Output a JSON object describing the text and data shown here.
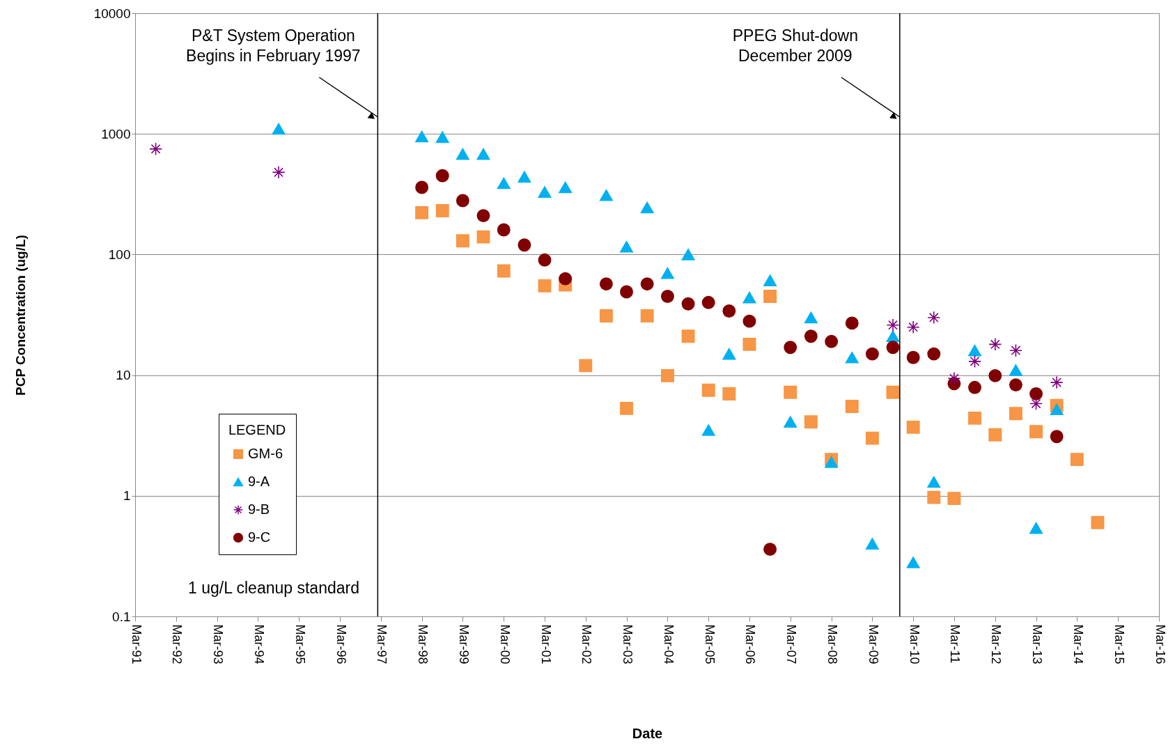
{
  "chart_data": {
    "type": "scatter",
    "xlabel": "Date",
    "ylabel": "PCP Concentration (ug/L)",
    "legend_title": "LEGEND",
    "log": "y",
    "grid": "y",
    "legend": "bottom left",
    "xlim": [
      "1991-03",
      "2016-03"
    ],
    "xticks": [
      {
        "value": "1991-03",
        "label": "Mar-91"
      },
      {
        "value": "1992-03",
        "label": "Mar-92"
      },
      {
        "value": "1993-03",
        "label": "Mar-93"
      },
      {
        "value": "1994-03",
        "label": "Mar-94"
      },
      {
        "value": "1995-03",
        "label": "Mar-95"
      },
      {
        "value": "1996-03",
        "label": "Mar-96"
      },
      {
        "value": "1997-03",
        "label": "Mar-97"
      },
      {
        "value": "1998-03",
        "label": "Mar-98"
      },
      {
        "value": "1999-03",
        "label": "Mar-99"
      },
      {
        "value": "2000-03",
        "label": "Mar-00"
      },
      {
        "value": "2001-03",
        "label": "Mar-01"
      },
      {
        "value": "2002-03",
        "label": "Mar-02"
      },
      {
        "value": "2003-03",
        "label": "Mar-03"
      },
      {
        "value": "2004-03",
        "label": "Mar-04"
      },
      {
        "value": "2005-03",
        "label": "Mar-05"
      },
      {
        "value": "2006-03",
        "label": "Mar-06"
      },
      {
        "value": "2007-03",
        "label": "Mar-07"
      },
      {
        "value": "2008-03",
        "label": "Mar-08"
      },
      {
        "value": "2009-03",
        "label": "Mar-09"
      },
      {
        "value": "2010-03",
        "label": "Mar-10"
      },
      {
        "value": "2011-03",
        "label": "Mar-11"
      },
      {
        "value": "2012-03",
        "label": "Mar-12"
      },
      {
        "value": "2013-03",
        "label": "Mar-13"
      },
      {
        "value": "2014-03",
        "label": "Mar-14"
      },
      {
        "value": "2015-03",
        "label": "Mar-15"
      },
      {
        "value": "2016-03",
        "label": "Mar-16"
      }
    ],
    "ylim": [
      0.1,
      10000
    ],
    "yticks": [
      0.1,
      1,
      10,
      100,
      1000,
      10000
    ],
    "series": [
      {
        "name": "GM-6",
        "color": "#f79646",
        "marker": "square",
        "x": [
          "1998-03",
          "1998-09",
          "1999-03",
          "1999-09",
          "2000-03",
          "2001-03",
          "2001-09",
          "2002-03",
          "2002-09",
          "2003-03",
          "2003-09",
          "2004-03",
          "2004-09",
          "2005-03",
          "2005-09",
          "2006-03",
          "2006-09",
          "2007-03",
          "2007-09",
          "2008-03",
          "2008-09",
          "2009-03",
          "2009-09",
          "2010-03",
          "2010-09",
          "2011-03",
          "2011-09",
          "2012-03",
          "2012-09",
          "2013-03",
          "2013-09",
          "2014-03",
          "2014-09"
        ],
        "values": [
          222,
          231,
          130,
          140,
          73,
          55,
          56,
          12,
          31,
          5.3,
          31,
          9.9,
          21,
          7.5,
          7.0,
          18,
          45,
          7.2,
          4.1,
          2.0,
          5.5,
          3.0,
          7.2,
          3.7,
          0.97,
          0.95,
          4.4,
          3.2,
          4.8,
          3.4,
          5.6,
          2.0,
          0.6
        ]
      },
      {
        "name": "9-A",
        "color": "#00b0f0",
        "marker": "triangle",
        "x": [
          "1994-09",
          "1998-03",
          "1998-09",
          "1999-03",
          "1999-09",
          "2000-03",
          "2000-09",
          "2001-03",
          "2001-09",
          "2002-09",
          "2003-03",
          "2003-09",
          "2004-03",
          "2004-09",
          "2005-03",
          "2005-09",
          "2006-03",
          "2006-09",
          "2007-03",
          "2007-09",
          "2008-03",
          "2008-09",
          "2009-03",
          "2009-09",
          "2010-03",
          "2010-09",
          "2011-09",
          "2012-09",
          "2013-03",
          "2013-09"
        ],
        "values": [
          1100,
          950,
          940,
          680,
          680,
          390,
          440,
          330,
          360,
          310,
          116,
          245,
          70,
          100,
          3.5,
          15,
          44,
          61,
          4.1,
          30,
          1.9,
          14,
          0.4,
          21,
          0.28,
          1.3,
          16,
          11,
          0.54,
          5.2
        ]
      },
      {
        "name": "9-B",
        "color": "#7f007f",
        "marker": "cross",
        "x": [
          "1991-09",
          "1994-09",
          "2009-09",
          "2010-03",
          "2010-09",
          "2011-03",
          "2011-09",
          "2012-03",
          "2012-09",
          "2013-03",
          "2013-09"
        ],
        "values": [
          750,
          480,
          26,
          25,
          30,
          9.4,
          13,
          18,
          16,
          5.8,
          8.7
        ]
      },
      {
        "name": "9-C",
        "color": "#800000",
        "marker": "circle",
        "x": [
          "1998-03",
          "1998-09",
          "1999-03",
          "1999-09",
          "2000-03",
          "2000-09",
          "2001-03",
          "2001-09",
          "2002-09",
          "2003-03",
          "2003-09",
          "2004-03",
          "2004-09",
          "2005-03",
          "2005-09",
          "2006-03",
          "2006-09",
          "2007-03",
          "2007-09",
          "2008-03",
          "2008-09",
          "2009-03",
          "2009-09",
          "2010-03",
          "2010-09",
          "2011-03",
          "2011-09",
          "2012-03",
          "2012-09",
          "2013-03",
          "2013-09"
        ],
        "values": [
          360,
          450,
          280,
          210,
          160,
          120,
          90,
          63,
          57,
          49,
          57,
          45,
          39,
          40,
          34,
          28,
          0.36,
          17,
          21,
          19,
          27,
          15,
          17,
          14,
          15,
          8.5,
          7.9,
          9.9,
          8.3,
          7.0,
          3.1
        ]
      }
    ],
    "ref_lines": [
      {
        "axis": "x",
        "value": "1997-02",
        "label": "P&T System Operation\nBegins in February 1997",
        "color": "#000000"
      },
      {
        "axis": "x",
        "value": "2009-11",
        "label": "PPEG Shut-down\nDecember 2009",
        "color": "#000000"
      }
    ],
    "annotations": [
      "1 ug/L cleanup standard"
    ]
  }
}
